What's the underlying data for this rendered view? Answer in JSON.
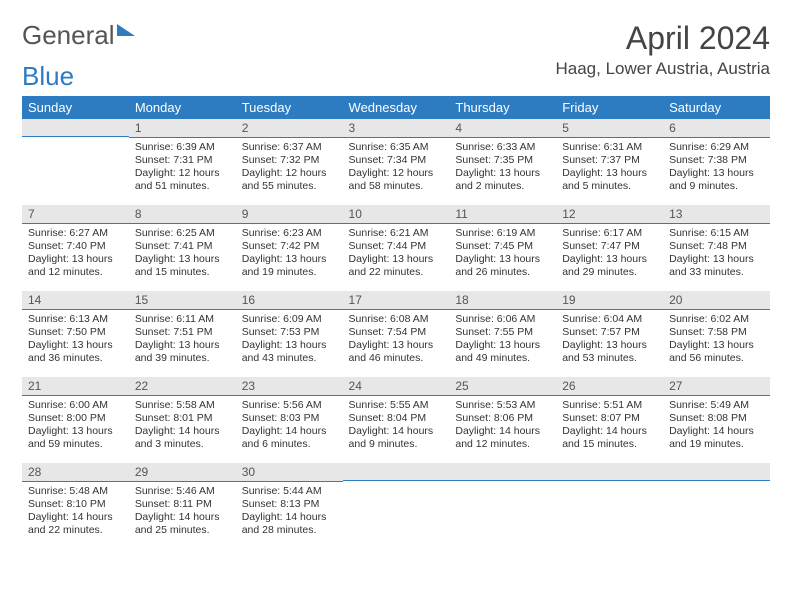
{
  "logo": {
    "word1": "General",
    "word2": "Blue"
  },
  "header": {
    "month_title": "April 2024",
    "location": "Haag, Lower Austria, Austria"
  },
  "colors": {
    "accent": "#2d7cc1",
    "header_bg": "#2d7cc1",
    "header_text": "#ffffff",
    "daybar_bg": "#e7e7e7",
    "text": "#333333"
  },
  "weekdays": [
    "Sunday",
    "Monday",
    "Tuesday",
    "Wednesday",
    "Thursday",
    "Friday",
    "Saturday"
  ],
  "weeks": [
    [
      null,
      {
        "n": "1",
        "sunrise": "Sunrise: 6:39 AM",
        "sunset": "Sunset: 7:31 PM",
        "daylight": "Daylight: 12 hours and 51 minutes."
      },
      {
        "n": "2",
        "sunrise": "Sunrise: 6:37 AM",
        "sunset": "Sunset: 7:32 PM",
        "daylight": "Daylight: 12 hours and 55 minutes."
      },
      {
        "n": "3",
        "sunrise": "Sunrise: 6:35 AM",
        "sunset": "Sunset: 7:34 PM",
        "daylight": "Daylight: 12 hours and 58 minutes."
      },
      {
        "n": "4",
        "sunrise": "Sunrise: 6:33 AM",
        "sunset": "Sunset: 7:35 PM",
        "daylight": "Daylight: 13 hours and 2 minutes."
      },
      {
        "n": "5",
        "sunrise": "Sunrise: 6:31 AM",
        "sunset": "Sunset: 7:37 PM",
        "daylight": "Daylight: 13 hours and 5 minutes."
      },
      {
        "n": "6",
        "sunrise": "Sunrise: 6:29 AM",
        "sunset": "Sunset: 7:38 PM",
        "daylight": "Daylight: 13 hours and 9 minutes."
      }
    ],
    [
      {
        "n": "7",
        "sunrise": "Sunrise: 6:27 AM",
        "sunset": "Sunset: 7:40 PM",
        "daylight": "Daylight: 13 hours and 12 minutes."
      },
      {
        "n": "8",
        "sunrise": "Sunrise: 6:25 AM",
        "sunset": "Sunset: 7:41 PM",
        "daylight": "Daylight: 13 hours and 15 minutes."
      },
      {
        "n": "9",
        "sunrise": "Sunrise: 6:23 AM",
        "sunset": "Sunset: 7:42 PM",
        "daylight": "Daylight: 13 hours and 19 minutes."
      },
      {
        "n": "10",
        "sunrise": "Sunrise: 6:21 AM",
        "sunset": "Sunset: 7:44 PM",
        "daylight": "Daylight: 13 hours and 22 minutes."
      },
      {
        "n": "11",
        "sunrise": "Sunrise: 6:19 AM",
        "sunset": "Sunset: 7:45 PM",
        "daylight": "Daylight: 13 hours and 26 minutes."
      },
      {
        "n": "12",
        "sunrise": "Sunrise: 6:17 AM",
        "sunset": "Sunset: 7:47 PM",
        "daylight": "Daylight: 13 hours and 29 minutes."
      },
      {
        "n": "13",
        "sunrise": "Sunrise: 6:15 AM",
        "sunset": "Sunset: 7:48 PM",
        "daylight": "Daylight: 13 hours and 33 minutes."
      }
    ],
    [
      {
        "n": "14",
        "sunrise": "Sunrise: 6:13 AM",
        "sunset": "Sunset: 7:50 PM",
        "daylight": "Daylight: 13 hours and 36 minutes."
      },
      {
        "n": "15",
        "sunrise": "Sunrise: 6:11 AM",
        "sunset": "Sunset: 7:51 PM",
        "daylight": "Daylight: 13 hours and 39 minutes."
      },
      {
        "n": "16",
        "sunrise": "Sunrise: 6:09 AM",
        "sunset": "Sunset: 7:53 PM",
        "daylight": "Daylight: 13 hours and 43 minutes."
      },
      {
        "n": "17",
        "sunrise": "Sunrise: 6:08 AM",
        "sunset": "Sunset: 7:54 PM",
        "daylight": "Daylight: 13 hours and 46 minutes."
      },
      {
        "n": "18",
        "sunrise": "Sunrise: 6:06 AM",
        "sunset": "Sunset: 7:55 PM",
        "daylight": "Daylight: 13 hours and 49 minutes."
      },
      {
        "n": "19",
        "sunrise": "Sunrise: 6:04 AM",
        "sunset": "Sunset: 7:57 PM",
        "daylight": "Daylight: 13 hours and 53 minutes."
      },
      {
        "n": "20",
        "sunrise": "Sunrise: 6:02 AM",
        "sunset": "Sunset: 7:58 PM",
        "daylight": "Daylight: 13 hours and 56 minutes."
      }
    ],
    [
      {
        "n": "21",
        "sunrise": "Sunrise: 6:00 AM",
        "sunset": "Sunset: 8:00 PM",
        "daylight": "Daylight: 13 hours and 59 minutes."
      },
      {
        "n": "22",
        "sunrise": "Sunrise: 5:58 AM",
        "sunset": "Sunset: 8:01 PM",
        "daylight": "Daylight: 14 hours and 3 minutes."
      },
      {
        "n": "23",
        "sunrise": "Sunrise: 5:56 AM",
        "sunset": "Sunset: 8:03 PM",
        "daylight": "Daylight: 14 hours and 6 minutes."
      },
      {
        "n": "24",
        "sunrise": "Sunrise: 5:55 AM",
        "sunset": "Sunset: 8:04 PM",
        "daylight": "Daylight: 14 hours and 9 minutes."
      },
      {
        "n": "25",
        "sunrise": "Sunrise: 5:53 AM",
        "sunset": "Sunset: 8:06 PM",
        "daylight": "Daylight: 14 hours and 12 minutes."
      },
      {
        "n": "26",
        "sunrise": "Sunrise: 5:51 AM",
        "sunset": "Sunset: 8:07 PM",
        "daylight": "Daylight: 14 hours and 15 minutes."
      },
      {
        "n": "27",
        "sunrise": "Sunrise: 5:49 AM",
        "sunset": "Sunset: 8:08 PM",
        "daylight": "Daylight: 14 hours and 19 minutes."
      }
    ],
    [
      {
        "n": "28",
        "sunrise": "Sunrise: 5:48 AM",
        "sunset": "Sunset: 8:10 PM",
        "daylight": "Daylight: 14 hours and 22 minutes."
      },
      {
        "n": "29",
        "sunrise": "Sunrise: 5:46 AM",
        "sunset": "Sunset: 8:11 PM",
        "daylight": "Daylight: 14 hours and 25 minutes."
      },
      {
        "n": "30",
        "sunrise": "Sunrise: 5:44 AM",
        "sunset": "Sunset: 8:13 PM",
        "daylight": "Daylight: 14 hours and 28 minutes."
      },
      null,
      null,
      null,
      null
    ]
  ]
}
